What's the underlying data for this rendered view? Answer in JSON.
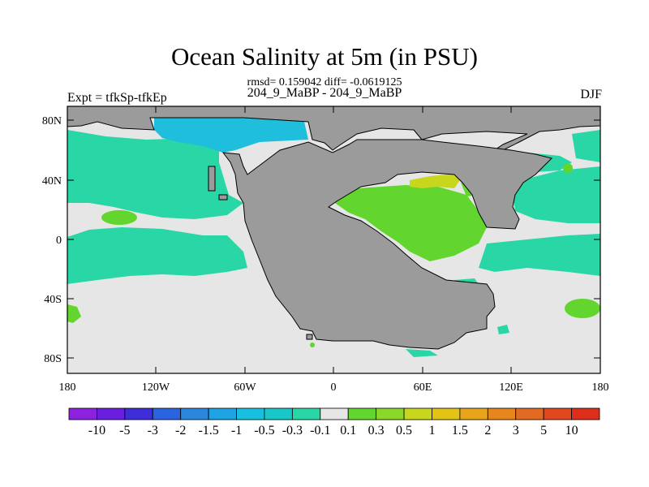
{
  "header": {
    "title": "Ocean Salinity at 5m (in PSU)",
    "stats": "rmsd= 0.159042 diff= -0.0619125",
    "experiment": "204_9_MaBP - 204_9_MaBP",
    "left_label": "Expt = tfkSp-tfkEp",
    "right_label": "DJF"
  },
  "map": {
    "lat_ticks": [
      "80N",
      "40N",
      "0",
      "40S",
      "80S"
    ],
    "lon_ticks": [
      "180",
      "120W",
      "60W",
      "0",
      "60E",
      "120E",
      "180"
    ],
    "colors": {
      "land": "#9b9b9b",
      "near_zero": "#e6e6e6",
      "neg_0_1_to_0_3": "#29d6a6",
      "neg_0_3_to_0_5": "#18c8c8",
      "neg_0_5_to_1": "#1ebedc",
      "pos_0_1_to_0_3": "#62d62e",
      "pos_0_5_to_1": "#c8d61e"
    }
  },
  "colorbar": {
    "labels": [
      "-10",
      "-5",
      "-3",
      "-2",
      "-1.5",
      "-1",
      "-0.5",
      "-0.3",
      "-0.1",
      "0.1",
      "0.3",
      "0.5",
      "1",
      "1.5",
      "2",
      "3",
      "5",
      "10"
    ],
    "colors": [
      "#8d21e0",
      "#6a1ee0",
      "#3d2ed9",
      "#2a63e0",
      "#2b86dd",
      "#1ea4e2",
      "#18c0e0",
      "#18c8c8",
      "#29d6a6",
      "#e6e6e6",
      "#62d62e",
      "#8bd82a",
      "#c8d61e",
      "#e3c414",
      "#e8a51a",
      "#e8861e",
      "#e36a22",
      "#e0491e",
      "#dc2e1a"
    ]
  }
}
